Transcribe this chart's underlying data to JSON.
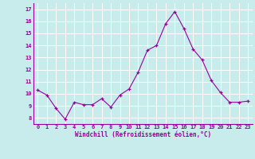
{
  "x": [
    0,
    1,
    2,
    3,
    4,
    5,
    6,
    7,
    8,
    9,
    10,
    11,
    12,
    13,
    14,
    15,
    16,
    17,
    18,
    19,
    20,
    21,
    22,
    23
  ],
  "y": [
    10.3,
    9.9,
    8.8,
    7.9,
    9.3,
    9.1,
    9.1,
    9.6,
    8.9,
    9.9,
    10.4,
    11.8,
    13.6,
    14.0,
    15.8,
    16.8,
    15.4,
    13.7,
    12.8,
    11.1,
    10.1,
    9.3,
    9.3,
    9.4
  ],
  "line_color": "#990099",
  "marker_color": "#990099",
  "bg_color": "#c8ecec",
  "grid_color": "#ffffff",
  "xlabel": "Windchill (Refroidissement éolien,°C)",
  "xlabel_color": "#990099",
  "tick_color": "#990099",
  "xlim": [
    -0.5,
    23.5
  ],
  "ylim": [
    7.5,
    17.5
  ],
  "yticks": [
    8,
    9,
    10,
    11,
    12,
    13,
    14,
    15,
    16,
    17
  ],
  "xticks": [
    0,
    1,
    2,
    3,
    4,
    5,
    6,
    7,
    8,
    9,
    10,
    11,
    12,
    13,
    14,
    15,
    16,
    17,
    18,
    19,
    20,
    21,
    22,
    23
  ],
  "xtick_labels": [
    "0",
    "1",
    "2",
    "3",
    "4",
    "5",
    "6",
    "7",
    "8",
    "9",
    "10",
    "11",
    "12",
    "13",
    "14",
    "15",
    "16",
    "17",
    "18",
    "19",
    "20",
    "21",
    "22",
    "23"
  ],
  "ytick_labels": [
    "8",
    "9",
    "10",
    "11",
    "12",
    "13",
    "14",
    "15",
    "16",
    "17"
  ]
}
